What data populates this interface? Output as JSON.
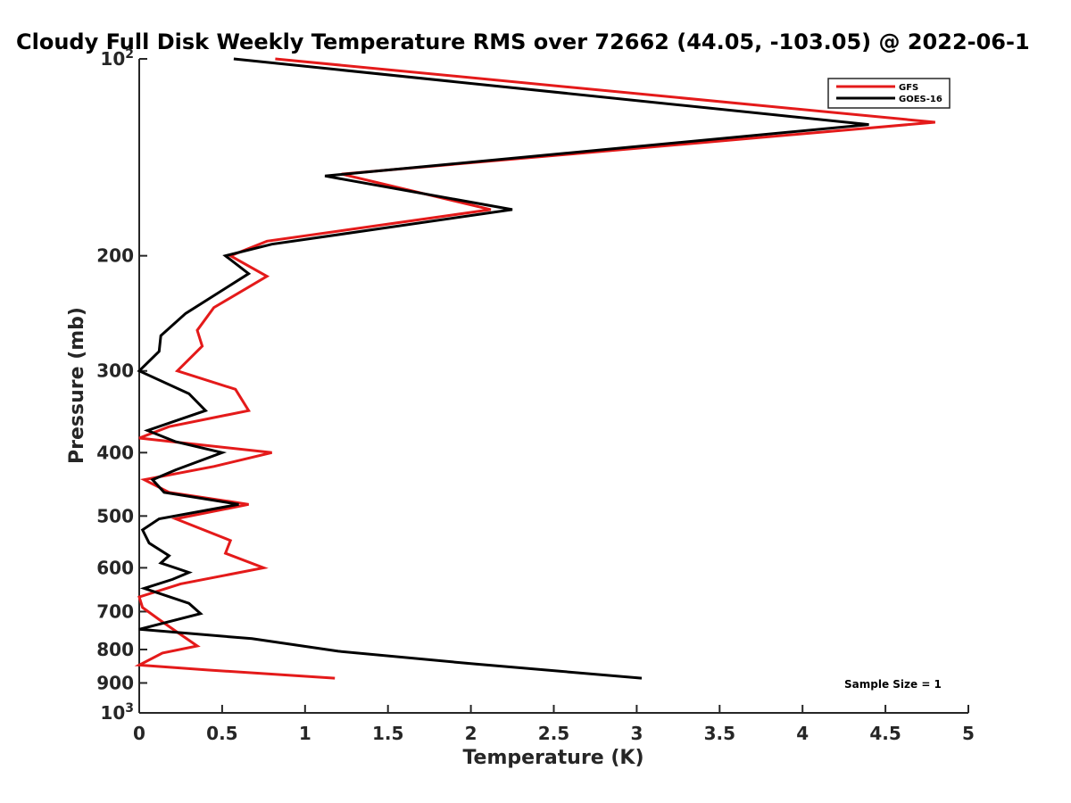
{
  "chart_data": {
    "type": "line",
    "title": "Cloudy Full Disk Weekly Temperature RMS over 72662 (44.05, -103.05) @ 2022-06-1",
    "xlabel": "Temperature (K)",
    "ylabel": "Pressure (mb)",
    "xlim": [
      0,
      5
    ],
    "ylim": [
      100,
      1000
    ],
    "y_scale": "log",
    "y_reversed": true,
    "x_ticks": [
      "0",
      "0.5",
      "1",
      "1.5",
      "2",
      "2.5",
      "3",
      "3.5",
      "4",
      "4.5",
      "5"
    ],
    "y_ticks": [
      {
        "value": 100,
        "base": "10",
        "exp": "2"
      },
      {
        "value": 200,
        "label": "200"
      },
      {
        "value": 300,
        "label": "300"
      },
      {
        "value": 400,
        "label": "400"
      },
      {
        "value": 500,
        "label": "500"
      },
      {
        "value": 600,
        "label": "600"
      },
      {
        "value": 700,
        "label": "700"
      },
      {
        "value": 800,
        "label": "800"
      },
      {
        "value": 900,
        "label": "900"
      },
      {
        "value": 1000,
        "base": "10",
        "exp": "3"
      }
    ],
    "legend_position": "top-right",
    "annotation": "Sample Size = 1",
    "series": [
      {
        "name": "GFS",
        "color": "#e41a1a",
        "points": [
          [
            0.82,
            100
          ],
          [
            4.8,
            125
          ],
          [
            1.22,
            150
          ],
          [
            2.12,
            170
          ],
          [
            0.77,
            190
          ],
          [
            0.55,
            200
          ],
          [
            0.77,
            215
          ],
          [
            0.45,
            240
          ],
          [
            0.35,
            260
          ],
          [
            0.38,
            275
          ],
          [
            0.23,
            300
          ],
          [
            0.58,
            320
          ],
          [
            0.66,
            345
          ],
          [
            0.18,
            365
          ],
          [
            0.0,
            380
          ],
          [
            0.8,
            400
          ],
          [
            0.45,
            420
          ],
          [
            0.03,
            440
          ],
          [
            0.18,
            460
          ],
          [
            0.66,
            480
          ],
          [
            0.22,
            505
          ],
          [
            0.55,
            545
          ],
          [
            0.52,
            570
          ],
          [
            0.75,
            600
          ],
          [
            0.25,
            635
          ],
          [
            0.0,
            665
          ],
          [
            0.02,
            690
          ],
          [
            0.12,
            720
          ],
          [
            0.22,
            750
          ],
          [
            0.35,
            790
          ],
          [
            0.14,
            810
          ],
          [
            0.0,
            845
          ],
          [
            0.42,
            860
          ],
          [
            1.18,
            885
          ]
        ]
      },
      {
        "name": "GOES-16",
        "color": "#000000",
        "points": [
          [
            0.57,
            100
          ],
          [
            4.4,
            126
          ],
          [
            1.12,
            151
          ],
          [
            2.25,
            170
          ],
          [
            0.8,
            192
          ],
          [
            0.52,
            200
          ],
          [
            0.66,
            213
          ],
          [
            0.28,
            245
          ],
          [
            0.13,
            265
          ],
          [
            0.12,
            280
          ],
          [
            0.0,
            300
          ],
          [
            0.3,
            325
          ],
          [
            0.4,
            345
          ],
          [
            0.05,
            370
          ],
          [
            0.22,
            385
          ],
          [
            0.5,
            400
          ],
          [
            0.22,
            425
          ],
          [
            0.08,
            440
          ],
          [
            0.15,
            460
          ],
          [
            0.6,
            480
          ],
          [
            0.12,
            505
          ],
          [
            0.02,
            525
          ],
          [
            0.06,
            550
          ],
          [
            0.18,
            575
          ],
          [
            0.13,
            590
          ],
          [
            0.3,
            610
          ],
          [
            0.2,
            625
          ],
          [
            0.03,
            645
          ],
          [
            0.3,
            680
          ],
          [
            0.37,
            705
          ],
          [
            0.0,
            745
          ],
          [
            0.68,
            770
          ],
          [
            1.2,
            805
          ],
          [
            2.03,
            842
          ],
          [
            3.03,
            885
          ]
        ]
      }
    ]
  }
}
